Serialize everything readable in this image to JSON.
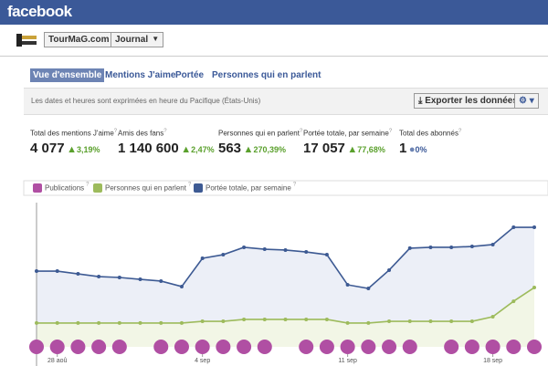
{
  "header": {
    "brand": "facebook"
  },
  "page": {
    "name": "TourMaG.com",
    "menu": "Journal"
  },
  "tabs": [
    "Vue d'ensemble",
    "Mentions J'aime",
    "Portée",
    "Personnes qui en parlent"
  ],
  "notice": "Les dates et heures sont exprimées en heure du Pacifique (États-Unis)",
  "export_button": "Exporter les données",
  "help": "?",
  "stats": [
    {
      "label": "Total des mentions J'aime",
      "value": "4 077",
      "change": "3,19%"
    },
    {
      "label": "Amis des fans",
      "value": "1 140 600",
      "change": "2,47%"
    },
    {
      "label": "Personnes qui en parlent",
      "value": "563",
      "change": "270,39%"
    },
    {
      "label": "Portée totale, par semaine",
      "value": "17 057",
      "change": "77,68%"
    },
    {
      "label": "Total des abonnés",
      "value": "1",
      "change": "0%"
    }
  ],
  "chart_data": {
    "type": "line",
    "categories": [
      null,
      "28 aoû",
      null,
      null,
      null,
      null,
      null,
      null,
      "4 sep",
      null,
      null,
      null,
      null,
      null,
      null,
      "11 sep",
      null,
      null,
      null,
      null,
      null,
      null,
      "18 sep",
      null,
      null
    ],
    "ylim": [
      0,
      100
    ],
    "series": [
      {
        "name": "Publications",
        "color": "#b04fa3",
        "values": [
          0,
          0,
          0,
          0,
          0,
          null,
          0,
          0,
          0,
          0,
          0,
          0,
          null,
          0,
          0,
          0,
          0,
          0,
          0,
          null,
          0,
          0,
          0,
          0,
          0
        ]
      },
      {
        "name": "Personnes qui en parlent",
        "color": "#9dbb5c",
        "values": [
          16.5,
          16.5,
          16.5,
          16.5,
          16.5,
          16.5,
          16.5,
          16.5,
          17.7,
          17.7,
          19,
          19,
          19,
          19,
          19,
          16.5,
          16.5,
          17.7,
          17.7,
          17.7,
          17.7,
          17.7,
          20.9,
          31.6,
          41.1
        ]
      },
      {
        "name": "Portée totale, par semaine",
        "color": "#3d5a93",
        "values": [
          52.5,
          52.5,
          50.6,
          48.7,
          48.1,
          46.8,
          45.6,
          41.8,
          61.4,
          63.9,
          69,
          67.7,
          67.1,
          65.8,
          63.9,
          43,
          40.5,
          53.2,
          68.4,
          69,
          69,
          69.6,
          70.9,
          82.9,
          82.9
        ]
      }
    ]
  }
}
